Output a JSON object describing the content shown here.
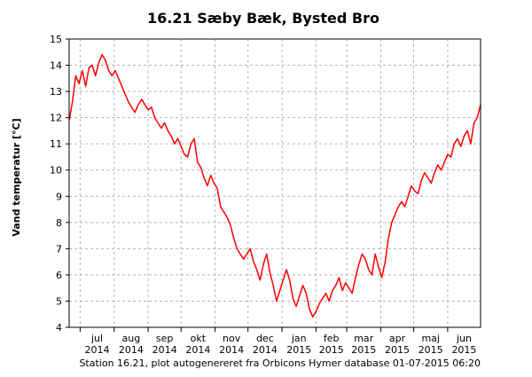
{
  "chart_data": {
    "type": "line",
    "title": "16.21 Sæby Bæk, Bysted Bro",
    "ylabel": "Vand temperatur [°C]",
    "xlabel": "",
    "ylim": [
      4,
      15
    ],
    "yticks": [
      4,
      5,
      6,
      7,
      8,
      9,
      10,
      11,
      12,
      13,
      14,
      15
    ],
    "xlim": [
      "2014-06-21",
      "2015-07-01"
    ],
    "grid": true,
    "x_ticks": [
      {
        "month": "jul",
        "year": "2014",
        "date": "2014-07-01"
      },
      {
        "month": "aug",
        "year": "2014",
        "date": "2014-08-01"
      },
      {
        "month": "sep",
        "year": "2014",
        "date": "2014-09-01"
      },
      {
        "month": "okt",
        "year": "2014",
        "date": "2014-10-01"
      },
      {
        "month": "nov",
        "year": "2014",
        "date": "2014-11-01"
      },
      {
        "month": "dec",
        "year": "2014",
        "date": "2014-12-01"
      },
      {
        "month": "jan",
        "year": "2015",
        "date": "2015-01-01"
      },
      {
        "month": "feb",
        "year": "2015",
        "date": "2015-02-01"
      },
      {
        "month": "mar",
        "year": "2015",
        "date": "2015-03-01"
      },
      {
        "month": "apr",
        "year": "2015",
        "date": "2015-04-01"
      },
      {
        "month": "maj",
        "year": "2015",
        "date": "2015-05-01"
      },
      {
        "month": "jun",
        "year": "2015",
        "date": "2015-06-01"
      }
    ],
    "series": [
      {
        "color": "#ff0000",
        "x": [
          "2014-06-21",
          "2014-06-24",
          "2014-06-27",
          "2014-06-30",
          "2014-07-03",
          "2014-07-06",
          "2014-07-09",
          "2014-07-12",
          "2014-07-15",
          "2014-07-18",
          "2014-07-21",
          "2014-07-24",
          "2014-07-27",
          "2014-07-30",
          "2014-08-02",
          "2014-08-05",
          "2014-08-08",
          "2014-08-11",
          "2014-08-14",
          "2014-08-17",
          "2014-08-20",
          "2014-08-23",
          "2014-08-26",
          "2014-08-29",
          "2014-09-01",
          "2014-09-04",
          "2014-09-07",
          "2014-09-10",
          "2014-09-13",
          "2014-09-16",
          "2014-09-19",
          "2014-09-22",
          "2014-09-25",
          "2014-09-28",
          "2014-10-01",
          "2014-10-04",
          "2014-10-07",
          "2014-10-10",
          "2014-10-13",
          "2014-10-16",
          "2014-10-19",
          "2014-10-22",
          "2014-10-25",
          "2014-10-28",
          "2014-10-31",
          "2014-11-03",
          "2014-11-06",
          "2014-11-09",
          "2014-11-12",
          "2014-11-15",
          "2014-11-18",
          "2014-11-21",
          "2014-11-24",
          "2014-11-27",
          "2014-11-30",
          "2014-12-03",
          "2014-12-06",
          "2014-12-09",
          "2014-12-12",
          "2014-12-15",
          "2014-12-18",
          "2014-12-21",
          "2014-12-24",
          "2014-12-27",
          "2014-12-30",
          "2015-01-02",
          "2015-01-05",
          "2015-01-08",
          "2015-01-11",
          "2015-01-14",
          "2015-01-17",
          "2015-01-20",
          "2015-01-23",
          "2015-01-26",
          "2015-01-29",
          "2015-02-01",
          "2015-02-04",
          "2015-02-07",
          "2015-02-10",
          "2015-02-13",
          "2015-02-16",
          "2015-02-19",
          "2015-02-22",
          "2015-02-25",
          "2015-02-28",
          "2015-03-03",
          "2015-03-06",
          "2015-03-09",
          "2015-03-12",
          "2015-03-15",
          "2015-03-18",
          "2015-03-21",
          "2015-03-24",
          "2015-03-27",
          "2015-03-30",
          "2015-04-02",
          "2015-04-05",
          "2015-04-08",
          "2015-04-11",
          "2015-04-14",
          "2015-04-17",
          "2015-04-20",
          "2015-04-23",
          "2015-04-26",
          "2015-04-29",
          "2015-05-02",
          "2015-05-05",
          "2015-05-08",
          "2015-05-11",
          "2015-05-14",
          "2015-05-17",
          "2015-05-20",
          "2015-05-23",
          "2015-05-26",
          "2015-05-29",
          "2015-06-01",
          "2015-06-04",
          "2015-06-07",
          "2015-06-10",
          "2015-06-13",
          "2015-06-16",
          "2015-06-19",
          "2015-06-22",
          "2015-06-25",
          "2015-06-28",
          "2015-07-01"
        ],
        "y": [
          11.9,
          12.6,
          13.6,
          13.3,
          13.8,
          13.2,
          13.9,
          14.0,
          13.6,
          14.1,
          14.4,
          14.2,
          13.8,
          13.6,
          13.8,
          13.5,
          13.2,
          12.9,
          12.6,
          12.4,
          12.2,
          12.5,
          12.7,
          12.5,
          12.3,
          12.4,
          12.0,
          11.8,
          11.6,
          11.8,
          11.5,
          11.3,
          11.0,
          11.2,
          10.9,
          10.6,
          10.5,
          11.0,
          11.2,
          10.3,
          10.1,
          9.7,
          9.4,
          9.8,
          9.5,
          9.3,
          8.6,
          8.4,
          8.2,
          7.9,
          7.4,
          7.0,
          6.8,
          6.6,
          6.8,
          7.0,
          6.5,
          6.2,
          5.8,
          6.4,
          6.8,
          6.1,
          5.6,
          5.0,
          5.4,
          5.8,
          6.2,
          5.8,
          5.1,
          4.8,
          5.2,
          5.6,
          5.3,
          4.7,
          4.4,
          4.6,
          4.9,
          5.1,
          5.3,
          5.0,
          5.4,
          5.6,
          5.9,
          5.4,
          5.7,
          5.5,
          5.3,
          5.9,
          6.4,
          6.8,
          6.6,
          6.2,
          6.0,
          6.8,
          6.3,
          5.9,
          6.5,
          7.4,
          8.0,
          8.3,
          8.6,
          8.8,
          8.6,
          9.0,
          9.4,
          9.2,
          9.1,
          9.6,
          9.9,
          9.7,
          9.5,
          9.9,
          10.2,
          10.0,
          10.3,
          10.6,
          10.5,
          11.0,
          11.2,
          10.9,
          11.3,
          11.5,
          11.0,
          11.8,
          12.0,
          12.5
        ]
      }
    ]
  },
  "footer": "Station 16.21, plot autogenereret fra Orbicons Hymer database 01-07-2015 06:20"
}
